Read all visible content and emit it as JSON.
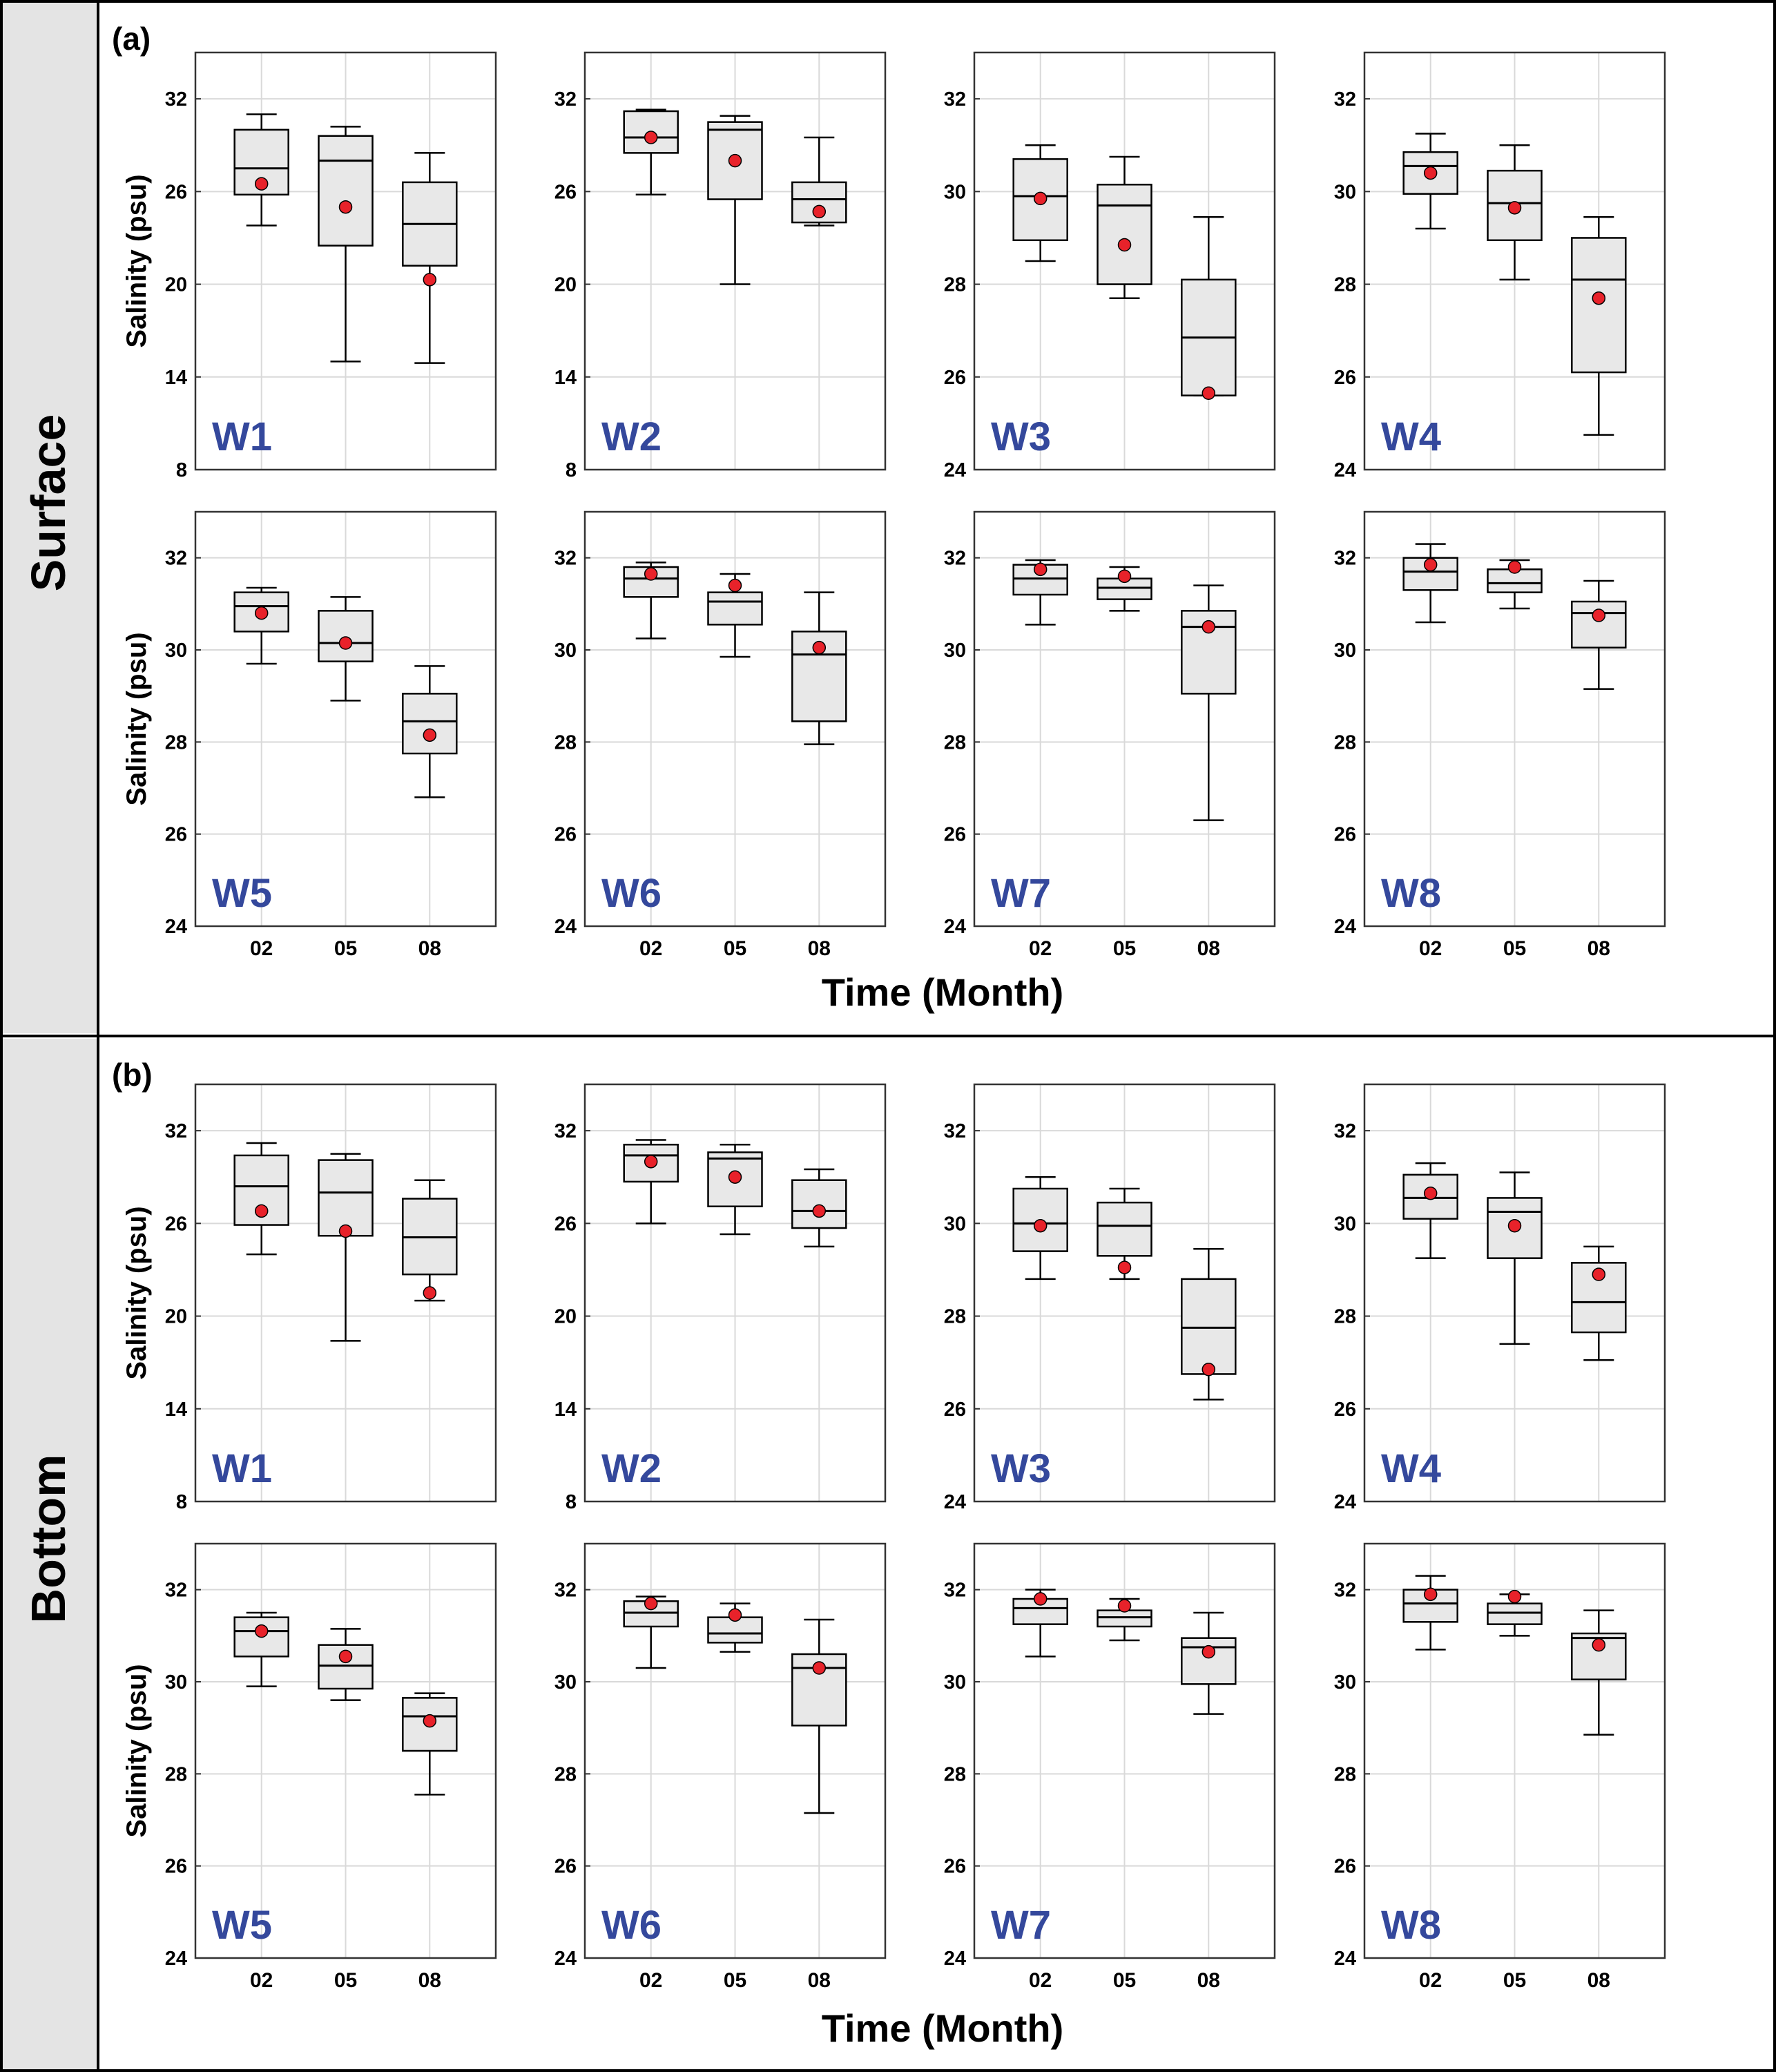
{
  "colors": {
    "sidebar_bg": "#e4e4e4",
    "frame": "#000000",
    "axis": "#333333",
    "grid": "#d9d9d9",
    "box_fill": "#e8e8e8",
    "mean": "#e8222a",
    "station_label": "#34489c"
  },
  "sections": [
    {
      "name": "Surface",
      "panel_label": "(a)",
      "xlabel": "Time (Month)"
    },
    {
      "name": "Bottom",
      "panel_label": "(b)",
      "xlabel": "Time (Month)"
    }
  ],
  "chart_data": {
    "type": "boxplot",
    "ylabel": "Salinity (psu)",
    "xlabel": "Time (Month)",
    "categories": [
      "02",
      "05",
      "08"
    ],
    "legend_marker": "mean (red dot)",
    "surface": [
      {
        "station": "W1",
        "ylim": [
          8,
          35
        ],
        "yticks": [
          8,
          14,
          20,
          26,
          32
        ],
        "boxes": [
          {
            "min": 23.8,
            "q1": 25.8,
            "median": 27.5,
            "q3": 30.0,
            "max": 31.0,
            "mean": 26.5
          },
          {
            "min": 15.0,
            "q1": 22.5,
            "median": 28.0,
            "q3": 29.6,
            "max": 30.2,
            "mean": 25.0
          },
          {
            "min": 14.9,
            "q1": 21.2,
            "median": 23.9,
            "q3": 26.6,
            "max": 28.5,
            "mean": 20.3
          }
        ]
      },
      {
        "station": "W2",
        "ylim": [
          8,
          35
        ],
        "yticks": [
          8,
          14,
          20,
          26,
          32
        ],
        "boxes": [
          {
            "min": 25.8,
            "q1": 28.5,
            "median": 29.5,
            "q3": 31.2,
            "max": 31.3,
            "mean": 29.5
          },
          {
            "min": 20.0,
            "q1": 25.5,
            "median": 30.0,
            "q3": 30.5,
            "max": 30.9,
            "mean": 28.0
          },
          {
            "min": 23.8,
            "q1": 24.0,
            "median": 25.5,
            "q3": 26.6,
            "max": 29.5,
            "mean": 24.7
          }
        ]
      },
      {
        "station": "W3",
        "ylim": [
          24,
          33
        ],
        "yticks": [
          24,
          26,
          28,
          30,
          32
        ],
        "boxes": [
          {
            "min": 28.5,
            "q1": 28.95,
            "median": 29.9,
            "q3": 30.7,
            "max": 31.0,
            "mean": 29.85
          },
          {
            "min": 27.7,
            "q1": 28.0,
            "median": 29.7,
            "q3": 30.15,
            "max": 30.75,
            "mean": 28.85
          },
          {
            "min": 25.6,
            "q1": 25.6,
            "median": 26.85,
            "q3": 28.1,
            "max": 29.45,
            "mean": 25.65
          }
        ]
      },
      {
        "station": "W4",
        "ylim": [
          24,
          33
        ],
        "yticks": [
          24,
          26,
          28,
          30,
          32
        ],
        "boxes": [
          {
            "min": 29.2,
            "q1": 29.95,
            "median": 30.55,
            "q3": 30.85,
            "max": 31.25,
            "mean": 30.4
          },
          {
            "min": 28.1,
            "q1": 28.95,
            "median": 29.75,
            "q3": 30.45,
            "max": 31.0,
            "mean": 29.65
          },
          {
            "min": 24.75,
            "q1": 26.1,
            "median": 28.1,
            "q3": 29.0,
            "max": 29.45,
            "mean": 27.7
          }
        ]
      },
      {
        "station": "W5",
        "ylim": [
          24,
          33
        ],
        "yticks": [
          24,
          26,
          28,
          30,
          32
        ],
        "boxes": [
          {
            "min": 29.7,
            "q1": 30.4,
            "median": 30.95,
            "q3": 31.25,
            "max": 31.35,
            "mean": 30.8
          },
          {
            "min": 28.9,
            "q1": 29.75,
            "median": 30.15,
            "q3": 30.85,
            "max": 31.15,
            "mean": 30.15
          },
          {
            "min": 26.8,
            "q1": 27.75,
            "median": 28.45,
            "q3": 29.05,
            "max": 29.65,
            "mean": 28.15
          }
        ]
      },
      {
        "station": "W6",
        "ylim": [
          24,
          33
        ],
        "yticks": [
          24,
          26,
          28,
          30,
          32
        ],
        "boxes": [
          {
            "min": 30.25,
            "q1": 31.15,
            "median": 31.55,
            "q3": 31.8,
            "max": 31.9,
            "mean": 31.65
          },
          {
            "min": 29.85,
            "q1": 30.55,
            "median": 31.05,
            "q3": 31.25,
            "max": 31.65,
            "mean": 31.4
          },
          {
            "min": 27.95,
            "q1": 28.45,
            "median": 29.9,
            "q3": 30.4,
            "max": 31.25,
            "mean": 30.05
          }
        ]
      },
      {
        "station": "W7",
        "ylim": [
          24,
          33
        ],
        "yticks": [
          24,
          26,
          28,
          30,
          32
        ],
        "boxes": [
          {
            "min": 30.55,
            "q1": 31.2,
            "median": 31.55,
            "q3": 31.85,
            "max": 31.95,
            "mean": 31.75
          },
          {
            "min": 30.85,
            "q1": 31.1,
            "median": 31.35,
            "q3": 31.55,
            "max": 31.8,
            "mean": 31.6
          },
          {
            "min": 26.3,
            "q1": 29.05,
            "median": 30.5,
            "q3": 30.85,
            "max": 31.4,
            "mean": 30.5
          }
        ]
      },
      {
        "station": "W8",
        "ylim": [
          24,
          33
        ],
        "yticks": [
          24,
          26,
          28,
          30,
          32
        ],
        "boxes": [
          {
            "min": 30.6,
            "q1": 31.3,
            "median": 31.7,
            "q3": 32.0,
            "max": 32.3,
            "mean": 31.85
          },
          {
            "min": 30.9,
            "q1": 31.25,
            "median": 31.45,
            "q3": 31.75,
            "max": 31.95,
            "mean": 31.8
          },
          {
            "min": 29.15,
            "q1": 30.05,
            "median": 30.8,
            "q3": 31.05,
            "max": 31.5,
            "mean": 30.75
          }
        ]
      }
    ],
    "bottom": [
      {
        "station": "W1",
        "ylim": [
          8,
          35
        ],
        "yticks": [
          8,
          14,
          20,
          26,
          32
        ],
        "boxes": [
          {
            "min": 24.0,
            "q1": 25.9,
            "median": 28.4,
            "q3": 30.4,
            "max": 31.2,
            "mean": 26.8
          },
          {
            "min": 18.4,
            "q1": 25.2,
            "median": 28.0,
            "q3": 30.1,
            "max": 30.5,
            "mean": 25.5
          },
          {
            "min": 21.0,
            "q1": 22.7,
            "median": 25.1,
            "q3": 27.6,
            "max": 28.8,
            "mean": 21.5
          }
        ]
      },
      {
        "station": "W2",
        "ylim": [
          8,
          35
        ],
        "yticks": [
          8,
          14,
          20,
          26,
          32
        ],
        "boxes": [
          {
            "min": 26.0,
            "q1": 28.7,
            "median": 30.4,
            "q3": 31.1,
            "max": 31.4,
            "mean": 30.0
          },
          {
            "min": 25.3,
            "q1": 27.1,
            "median": 30.2,
            "q3": 30.6,
            "max": 31.1,
            "mean": 29.0
          },
          {
            "min": 24.5,
            "q1": 25.7,
            "median": 26.8,
            "q3": 28.8,
            "max": 29.5,
            "mean": 26.8
          }
        ]
      },
      {
        "station": "W3",
        "ylim": [
          24,
          33
        ],
        "yticks": [
          24,
          26,
          28,
          30,
          32
        ],
        "boxes": [
          {
            "min": 28.8,
            "q1": 29.4,
            "median": 30.0,
            "q3": 30.75,
            "max": 31.0,
            "mean": 29.95
          },
          {
            "min": 28.8,
            "q1": 29.3,
            "median": 29.95,
            "q3": 30.45,
            "max": 30.75,
            "mean": 29.05
          },
          {
            "min": 26.2,
            "q1": 26.75,
            "median": 27.75,
            "q3": 28.8,
            "max": 29.45,
            "mean": 26.85
          }
        ]
      },
      {
        "station": "W4",
        "ylim": [
          24,
          33
        ],
        "yticks": [
          24,
          26,
          28,
          30,
          32
        ],
        "boxes": [
          {
            "min": 29.25,
            "q1": 30.1,
            "median": 30.55,
            "q3": 31.05,
            "max": 31.3,
            "mean": 30.65
          },
          {
            "min": 27.4,
            "q1": 29.25,
            "median": 30.25,
            "q3": 30.55,
            "max": 31.1,
            "mean": 29.95
          },
          {
            "min": 27.05,
            "q1": 27.65,
            "median": 28.3,
            "q3": 29.15,
            "max": 29.5,
            "mean": 28.9
          }
        ]
      },
      {
        "station": "W5",
        "ylim": [
          24,
          33
        ],
        "yticks": [
          24,
          26,
          28,
          30,
          32
        ],
        "boxes": [
          {
            "min": 29.9,
            "q1": 30.55,
            "median": 31.1,
            "q3": 31.4,
            "max": 31.5,
            "mean": 31.1
          },
          {
            "min": 29.6,
            "q1": 29.85,
            "median": 30.35,
            "q3": 30.8,
            "max": 31.15,
            "mean": 30.55
          },
          {
            "min": 27.55,
            "q1": 28.5,
            "median": 29.25,
            "q3": 29.65,
            "max": 29.75,
            "mean": 29.15
          }
        ]
      },
      {
        "station": "W6",
        "ylim": [
          24,
          33
        ],
        "yticks": [
          24,
          26,
          28,
          30,
          32
        ],
        "boxes": [
          {
            "min": 30.3,
            "q1": 31.2,
            "median": 31.5,
            "q3": 31.75,
            "max": 31.85,
            "mean": 31.7
          },
          {
            "min": 30.65,
            "q1": 30.85,
            "median": 31.05,
            "q3": 31.4,
            "max": 31.7,
            "mean": 31.45
          },
          {
            "min": 27.15,
            "q1": 29.05,
            "median": 30.3,
            "q3": 30.6,
            "max": 31.35,
            "mean": 30.3
          }
        ]
      },
      {
        "station": "W7",
        "ylim": [
          24,
          33
        ],
        "yticks": [
          24,
          26,
          28,
          30,
          32
        ],
        "boxes": [
          {
            "min": 30.55,
            "q1": 31.25,
            "median": 31.6,
            "q3": 31.8,
            "max": 32.0,
            "mean": 31.8
          },
          {
            "min": 30.9,
            "q1": 31.2,
            "median": 31.4,
            "q3": 31.55,
            "max": 31.8,
            "mean": 31.65
          },
          {
            "min": 29.3,
            "q1": 29.95,
            "median": 30.75,
            "q3": 30.95,
            "max": 31.5,
            "mean": 30.65
          }
        ]
      },
      {
        "station": "W8",
        "ylim": [
          24,
          33
        ],
        "yticks": [
          24,
          26,
          28,
          30,
          32
        ],
        "boxes": [
          {
            "min": 30.7,
            "q1": 31.3,
            "median": 31.7,
            "q3": 32.0,
            "max": 32.3,
            "mean": 31.9
          },
          {
            "min": 31.0,
            "q1": 31.25,
            "median": 31.5,
            "q3": 31.7,
            "max": 31.9,
            "mean": 31.85
          },
          {
            "min": 28.85,
            "q1": 30.05,
            "median": 30.95,
            "q3": 31.05,
            "max": 31.55,
            "mean": 30.8
          }
        ]
      }
    ]
  }
}
